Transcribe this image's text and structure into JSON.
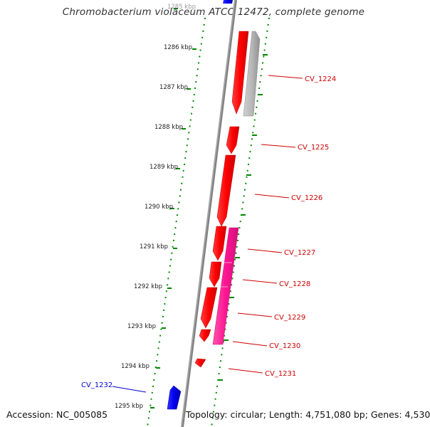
{
  "title": "Chromobacterium violaceum ATCC 12472, complete genome",
  "accession": "Accession: NC_005085",
  "topology": "Topology: circular; Length: 4,751,080 bp; Genes: 4,530",
  "colors": {
    "forward_strand": "#ff0000",
    "reverse_strand_magenta": "#ff1493",
    "reverse_strand_gray": "#b0b0b0",
    "blue_feature": "#0000ee",
    "label_red": "#cc0000",
    "label_blue": "#0000cc",
    "dotted_ring": "#008800",
    "backbone": "#808080"
  },
  "tick_labels": [
    "1285 kbp",
    "1286 kbp",
    "1287 kbp",
    "1288 kbp",
    "1289 kbp",
    "1290 kbp",
    "1291 kbp",
    "1292 kbp",
    "1293 kbp",
    "1294 kbp",
    "1295 kbp"
  ],
  "gene_labels": [
    "CV_1224",
    "CV_1225",
    "CV_1226",
    "CV_1227",
    "CV_1228",
    "CV_1229",
    "CV_1230",
    "CV_1231",
    "CV_1232"
  ]
}
